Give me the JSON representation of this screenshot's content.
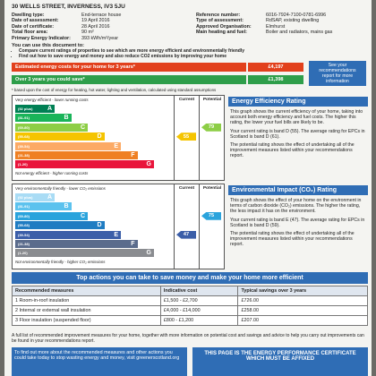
{
  "header": {
    "address": "30 WELLS STREET, INVERNESS, IV3 5JU"
  },
  "details_left": [
    {
      "label": "Dwelling type:",
      "value": "End-terrace house"
    },
    {
      "label": "Date of assessment:",
      "value": "19 April 2016"
    },
    {
      "label": "Date of certificate:",
      "value": "28 April 2016"
    },
    {
      "label": "Total floor area:",
      "value": "90 m²"
    },
    {
      "label": "Primary Energy Indicator:",
      "value": "393 kWh/m²/year"
    }
  ],
  "details_right": [
    {
      "label": "Reference number:",
      "value": "6016-7924-7100-0781-6996"
    },
    {
      "label": "Type of assessment:",
      "value": "RdSAP, existing dwelling"
    },
    {
      "label": "Approved Organisation:",
      "value": "Elmhurst"
    },
    {
      "label": "Main heating and fuel:",
      "value": "Boiler and radiators, mains gas"
    }
  ],
  "intro": {
    "title": "You can use this document to:",
    "bullets": [
      "Compare current ratings of properties to see which are more energy efficient and environmentally friendly",
      "Find out how to save energy and money and also reduce CO2 emissions by improving your home"
    ]
  },
  "costs": {
    "estimated": {
      "label": "Estimated energy costs for your home for 3 years*",
      "value": "£4,197"
    },
    "saving": {
      "label": "Over 3 years you could save*",
      "value": "£1,398"
    },
    "note": "See your recommendations report for more information",
    "footnote": "* based upon the cost of energy for heating, hot water, lighting and ventilation, calculated using standard assumptions"
  },
  "energy_rating": {
    "top_label": "Very energy efficient - lower running costs",
    "bottom_label": "Not energy efficient - higher running costs",
    "current_header": "Current",
    "potential_header": "Potential",
    "bands": [
      {
        "range": "(92 plus)",
        "letter": "A",
        "color": "#008054"
      },
      {
        "range": "(81-91)",
        "letter": "B",
        "color": "#19b459"
      },
      {
        "range": "(69-80)",
        "letter": "C",
        "color": "#8dce46"
      },
      {
        "range": "(55-68)",
        "letter": "D",
        "color": "#f5c400"
      },
      {
        "range": "(39-54)",
        "letter": "E",
        "color": "#fcaa65"
      },
      {
        "range": "(21-38)",
        "letter": "F",
        "color": "#ef8023"
      },
      {
        "range": "(1-20)",
        "letter": "G",
        "color": "#e9153b"
      }
    ],
    "current": 55,
    "potential": 79,
    "title": "Energy Efficiency Rating",
    "paragraphs": [
      "This graph shows the current efficiency of your home, taking into account both energy efficiency and fuel costs. The higher this rating, the lower your fuel bills are likely to be.",
      "Your current rating is band D (55). The average rating for EPCs in Scotland is band D (61).",
      "The potential rating shows the effect of undertaking all of the improvement measures listed within your recommendations report."
    ]
  },
  "environmental_rating": {
    "top_label": "Very environmentally friendly - lower CO₂ emissions",
    "bottom_label": "Not environmentally friendly - higher CO₂ emissions",
    "current_header": "Current",
    "potential_header": "Potential",
    "bands": [
      {
        "range": "(92 plus)",
        "letter": "A",
        "color": "#a9dcf5"
      },
      {
        "range": "(81-91)",
        "letter": "B",
        "color": "#5cc2ee"
      },
      {
        "range": "(69-80)",
        "letter": "C",
        "color": "#2aa3dc"
      },
      {
        "range": "(55-68)",
        "letter": "D",
        "color": "#1f7cc2"
      },
      {
        "range": "(39-54)",
        "letter": "E",
        "color": "#3b5ea8"
      },
      {
        "range": "(21-38)",
        "letter": "F",
        "color": "#5b6c8c"
      },
      {
        "range": "(1-20)",
        "letter": "G",
        "color": "#8a8c90"
      }
    ],
    "current": 47,
    "potential": 75,
    "title": "Environmental Impact (CO₂) Rating",
    "paragraphs": [
      "This graph shows the effect of your home on the environment in terms of carbon dioxide (CO₂) emissions. The higher the rating, the less impact it has on the environment.",
      "Your current rating is band E (47). The average rating for EPCs in Scotland is band D (59).",
      "The potential rating shows the effect of undertaking all of the improvement measures listed within your recommendations report."
    ]
  },
  "top_actions": {
    "title": "Top actions you can take to save money and make your home more efficient",
    "headers": [
      "Recommended measures",
      "Indicative cost",
      "Typical savings over 3 years"
    ],
    "rows": [
      [
        "1 Room-in-roof insulation",
        "£1,500 - £2,700",
        "£726.00"
      ],
      [
        "2 Internal or external wall insulation",
        "£4,000 - £14,000",
        "£258.00"
      ],
      [
        "3 Floor insulation (suspended floor)",
        "£800 - £1,200",
        "£207.00"
      ]
    ],
    "footer": "A full list of recommended improvement measures for your home, together with more information on potential cost and savings and advice to help you carry out improvements can be found in your recommendations report."
  },
  "bottom": {
    "left": "To find out more about the recommended measures and other actions you could take today to stop wasting energy and money, visit greenerscotland.org",
    "right": "THIS PAGE IS THE ENERGY PERFORMANCE CERTIFICATE WHICH MUST BE AFFIXED"
  }
}
